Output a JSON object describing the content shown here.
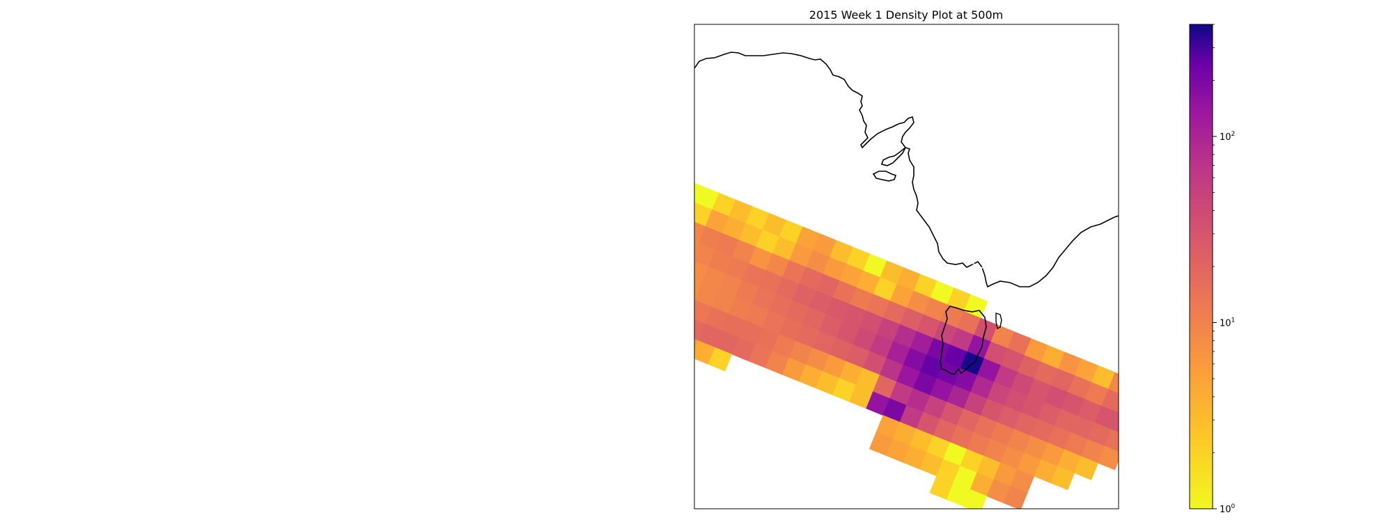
{
  "chart_data": {
    "type": "heatmap",
    "title": "2015 Week 1 Density Plot at 500m",
    "colormap": "plasma_r",
    "color_scale": "log",
    "color_range": [
      1,
      400
    ],
    "colorbar": {
      "position": "right",
      "tick_labels": [
        {
          "base": "10",
          "exp": "0",
          "value": 1
        },
        {
          "base": "10",
          "exp": "1",
          "value": 10
        },
        {
          "base": "10",
          "exp": "2",
          "value": 100
        }
      ]
    },
    "grid": false,
    "map_features": [
      "coastline",
      "dashed-region-box"
    ],
    "cell_values": [
      [
        1,
        1,
        1,
        2,
        3,
        2,
        3,
        2,
        5,
        6,
        3,
        2,
        1,
        3,
        4,
        2,
        1,
        2,
        1,
        0,
        0,
        0,
        0,
        0,
        0,
        0,
        0,
        0,
        0,
        0,
        1
      ],
      [
        5,
        4,
        2,
        5,
        4,
        3,
        2,
        3,
        6,
        8,
        6,
        5,
        4,
        2,
        5,
        8,
        10,
        12,
        15,
        35,
        10,
        15,
        6,
        4,
        7,
        5,
        3,
        9,
        14,
        6,
        14
      ],
      [
        6,
        8,
        9,
        11,
        12,
        10,
        7,
        9,
        14,
        18,
        20,
        15,
        12,
        14,
        18,
        24,
        30,
        45,
        60,
        150,
        35,
        30,
        22,
        18,
        20,
        15,
        12,
        18,
        22,
        20,
        25
      ],
      [
        4,
        6,
        9,
        10,
        11,
        12,
        14,
        15,
        18,
        22,
        25,
        28,
        30,
        35,
        50,
        80,
        120,
        200,
        250,
        380,
        150,
        60,
        40,
        30,
        35,
        30,
        25,
        30,
        30,
        25,
        40
      ],
      [
        3,
        5,
        7,
        8,
        9,
        10,
        12,
        14,
        16,
        18,
        20,
        25,
        30,
        40,
        60,
        110,
        180,
        250,
        220,
        180,
        90,
        45,
        35,
        30,
        25,
        20,
        20,
        18,
        15,
        12,
        10
      ],
      [
        2,
        4,
        6,
        8,
        9,
        10,
        11,
        12,
        14,
        16,
        18,
        20,
        22,
        25,
        35,
        70,
        140,
        200,
        150,
        100,
        50,
        30,
        25,
        20,
        18,
        15,
        12,
        10,
        8,
        0,
        0
      ],
      [
        5,
        7,
        9,
        11,
        13,
        15,
        16,
        16,
        15,
        12,
        10,
        8,
        6,
        4,
        3,
        20,
        60,
        80,
        50,
        30,
        20,
        15,
        12,
        10,
        8,
        6,
        4,
        3,
        0,
        0,
        0
      ],
      [
        10,
        12,
        14,
        16,
        18,
        20,
        20,
        18,
        14,
        10,
        6,
        4,
        3,
        2,
        3,
        150,
        200,
        60,
        30,
        20,
        15,
        12,
        10,
        8,
        6,
        4,
        3,
        0,
        0,
        0,
        0
      ],
      [
        15,
        12,
        10,
        8,
        6,
        4,
        2,
        0,
        0,
        0,
        0,
        0,
        0,
        0,
        0,
        0,
        5,
        4,
        3,
        2,
        1,
        2,
        3,
        6,
        8,
        0,
        0,
        0,
        0,
        0,
        0
      ],
      [
        12,
        8,
        0,
        0,
        0,
        0,
        0,
        0,
        0,
        0,
        0,
        0,
        0,
        0,
        0,
        0,
        6,
        5,
        4,
        3,
        2,
        1,
        4,
        8,
        10,
        0,
        0,
        0,
        0,
        0,
        0
      ],
      [
        0,
        0,
        0,
        0,
        0,
        0,
        0,
        0,
        0,
        0,
        0,
        0,
        0,
        0,
        0,
        0,
        0,
        0,
        0,
        0,
        2,
        1,
        1,
        0,
        0,
        0,
        0,
        0,
        0,
        0,
        0
      ]
    ]
  }
}
